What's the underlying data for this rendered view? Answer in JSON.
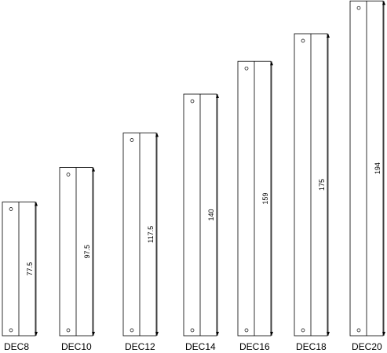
{
  "items": [
    {
      "label": "DEC8",
      "dimension": 77.5
    },
    {
      "label": "DEC10",
      "dimension": 97.5
    },
    {
      "label": "DEC12",
      "dimension": 117.5
    },
    {
      "label": "DEC14",
      "dimension": 140
    },
    {
      "label": "DEC16",
      "dimension": 159
    },
    {
      "label": "DEC18",
      "dimension": 175
    },
    {
      "label": "DEC20",
      "dimension": 194
    }
  ]
}
